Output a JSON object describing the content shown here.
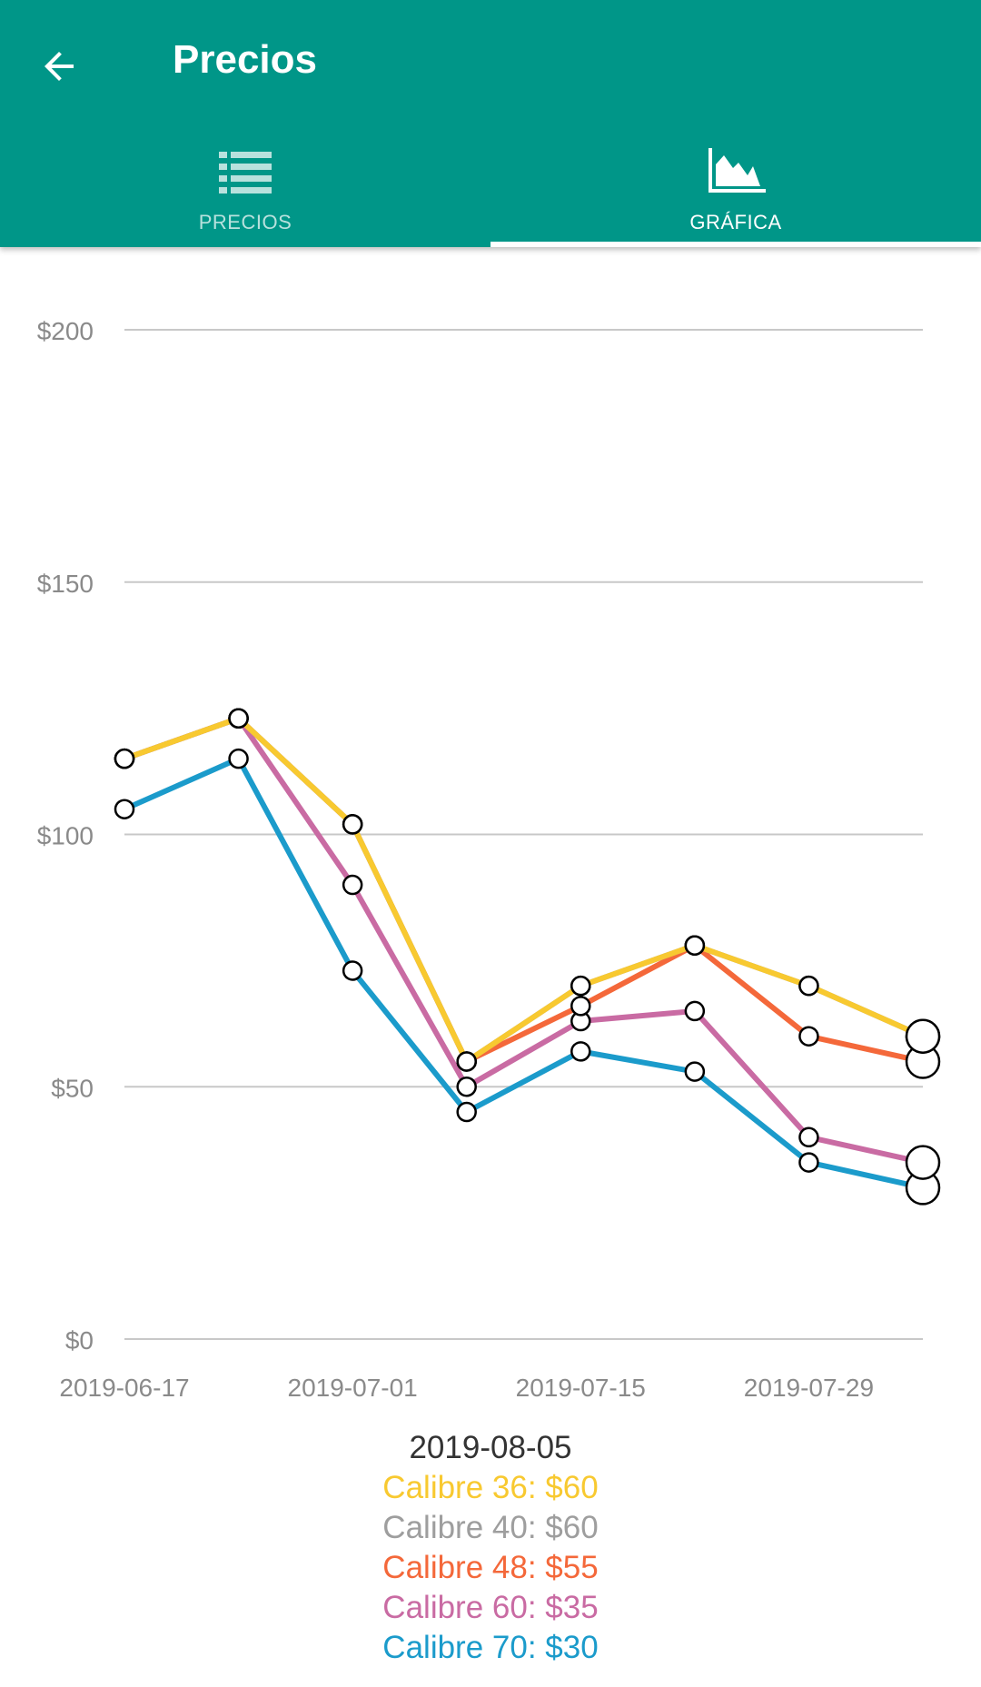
{
  "appbar": {
    "title": "Precios",
    "back_icon": "arrow-left-icon",
    "background": "#009688"
  },
  "tabs": [
    {
      "label": "PRECIOS",
      "icon": "list-icon",
      "selected": false
    },
    {
      "label": "GRÁFICA",
      "icon": "area-chart-icon",
      "selected": true
    }
  ],
  "chart_data": {
    "type": "line",
    "x": [
      "2019-06-17",
      "2019-06-24",
      "2019-07-01",
      "2019-07-08",
      "2019-07-15",
      "2019-07-22",
      "2019-07-29",
      "2019-08-05"
    ],
    "x_tick_labels": [
      "2019-06-17",
      "2019-07-01",
      "2019-07-15",
      "2019-07-29"
    ],
    "y_tick_labels": [
      "$0",
      "$50",
      "$100",
      "$150",
      "$200"
    ],
    "ylim": [
      0,
      200
    ],
    "y_ticks": [
      0,
      50,
      100,
      150,
      200
    ],
    "grid": true,
    "series": [
      {
        "name": "Calibre 36",
        "color": "#F8C930",
        "values": [
          115,
          123,
          102,
          55,
          70,
          78,
          70,
          60
        ]
      },
      {
        "name": "Calibre 40",
        "color": "#9E9E9E",
        "values": [
          115,
          123,
          102,
          55,
          70,
          78,
          70,
          60
        ]
      },
      {
        "name": "Calibre 48",
        "color": "#F4683A",
        "values": [
          115,
          123,
          102,
          55,
          66,
          78,
          60,
          55
        ]
      },
      {
        "name": "Calibre 60",
        "color": "#C96BA3",
        "values": [
          115,
          123,
          90,
          50,
          63,
          65,
          40,
          35
        ]
      },
      {
        "name": "Calibre 70",
        "color": "#1B9BCB",
        "values": [
          105,
          115,
          73,
          45,
          57,
          53,
          35,
          30
        ]
      }
    ]
  },
  "legend": {
    "date": "2019-08-05",
    "entries": [
      {
        "text": "Calibre 36: $60",
        "color": "#F8C930"
      },
      {
        "text": "Calibre 40: $60",
        "color": "#9E9E9E"
      },
      {
        "text": "Calibre 48: $55",
        "color": "#F4683A"
      },
      {
        "text": "Calibre 60: $35",
        "color": "#C96BA3"
      },
      {
        "text": "Calibre 70: $30",
        "color": "#1B9BCB"
      }
    ]
  }
}
